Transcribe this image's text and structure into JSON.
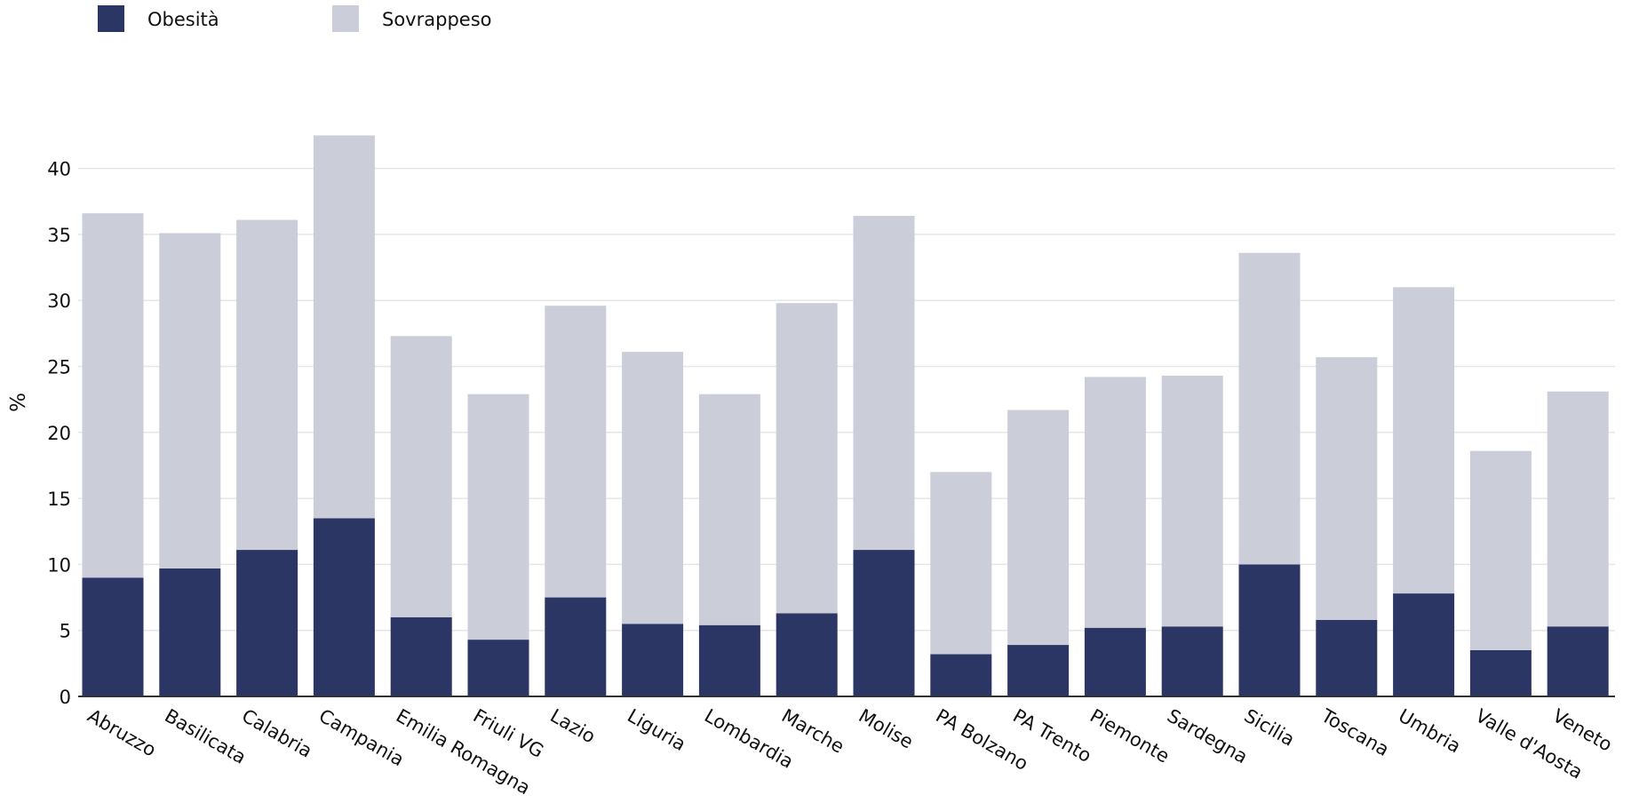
{
  "chart_data": {
    "type": "bar",
    "stacked": true,
    "categories": [
      "Abruzzo",
      "Basilicata",
      "Calabria",
      "Campania",
      "Emilia Romagna",
      "Friuli VG",
      "Lazio",
      "Liguria",
      "Lombardia",
      "Marche",
      "Molise",
      "PA Bolzano",
      "PA Trento",
      "Piemonte",
      "Sardegna",
      "Sicilia",
      "Toscana",
      "Umbria",
      "Valle d'Aosta",
      "Veneto"
    ],
    "series": [
      {
        "name": "Obesità",
        "color": "#2b3664",
        "values": [
          9.0,
          9.7,
          11.1,
          13.5,
          6.0,
          4.3,
          7.5,
          5.5,
          5.4,
          6.3,
          11.1,
          3.2,
          3.9,
          5.2,
          5.3,
          10.0,
          5.8,
          7.8,
          3.5,
          5.3
        ]
      },
      {
        "name": "Sovrappeso",
        "color": "#cbcdd9",
        "values": [
          27.6,
          25.4,
          25.0,
          29.0,
          21.3,
          18.6,
          22.1,
          20.6,
          17.5,
          23.5,
          25.3,
          13.8,
          17.8,
          19.0,
          19.0,
          23.6,
          19.9,
          23.2,
          15.1,
          17.8
        ]
      }
    ],
    "ylabel": "%",
    "ylim": [
      0,
      45
    ],
    "yticks": [
      0,
      5,
      10,
      15,
      20,
      25,
      30,
      35,
      40
    ],
    "grid": true,
    "legend_position": "top-left"
  }
}
